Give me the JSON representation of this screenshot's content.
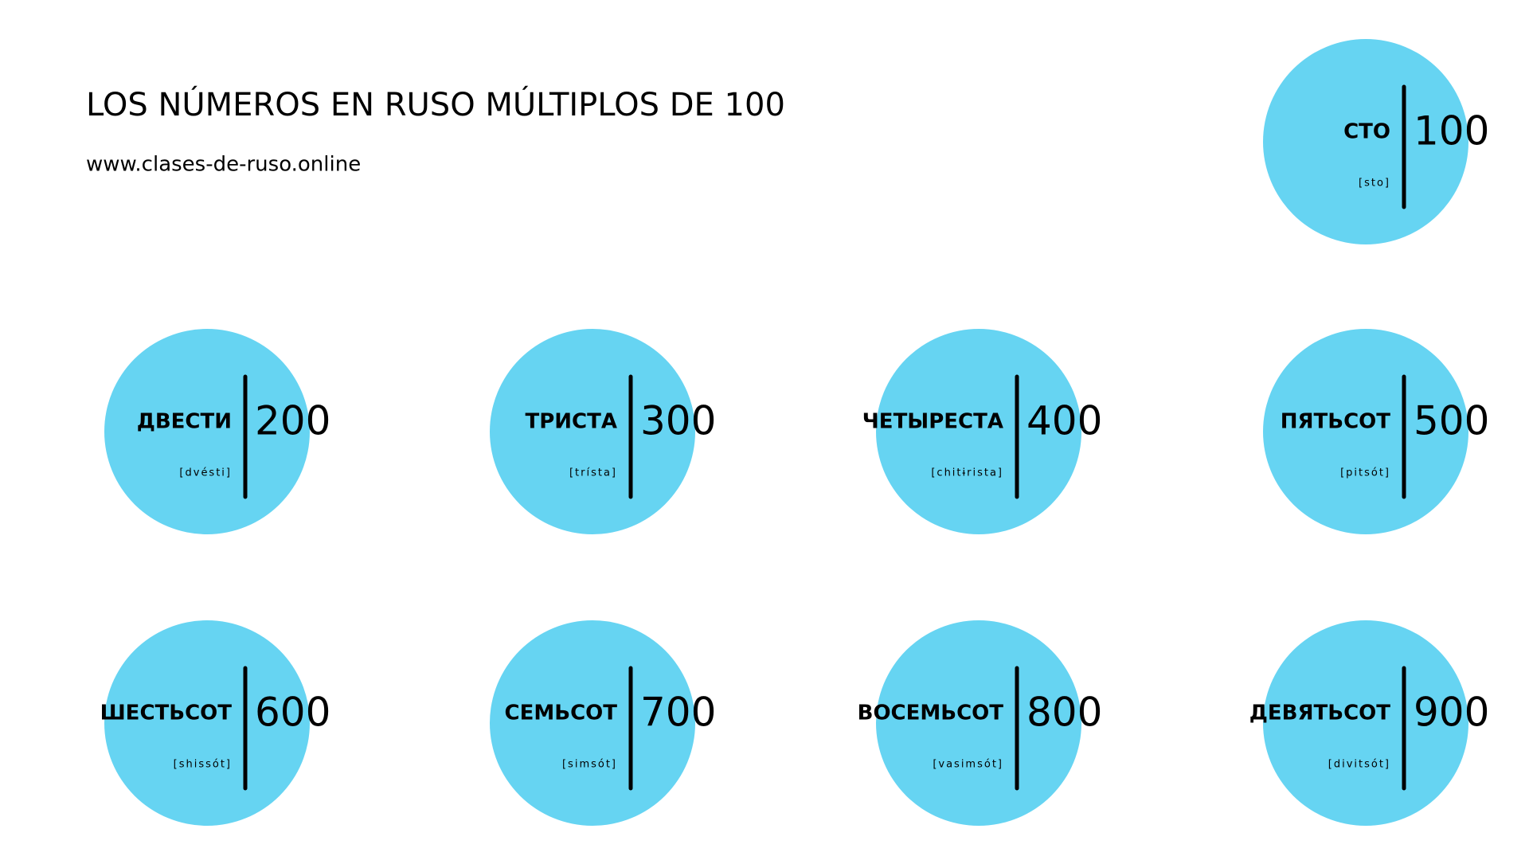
{
  "header": {
    "title": "LOS NÚMEROS EN RUSO MÚLTIPLOS DE 100",
    "subtitle": "www.clases-de-ruso.online"
  },
  "numbers": [
    {
      "word": "СТО",
      "pronunciation": "[sto]",
      "number": "100"
    },
    {
      "word": "ДВЕСТИ",
      "pronunciation": "[dvésti]",
      "number": "200"
    },
    {
      "word": "ТРИСТА",
      "pronunciation": "[trísta]",
      "number": "300"
    },
    {
      "word": "ЧЕТЫРЕСТА",
      "pronunciation": "[chitɨrista]",
      "number": "400"
    },
    {
      "word": "ПЯТЬСОТ",
      "pronunciation": "[pitsót]",
      "number": "500"
    },
    {
      "word": "ШЕСТЬСОТ",
      "pronunciation": "[shissót]",
      "number": "600"
    },
    {
      "word": "СЕМЬСОТ",
      "pronunciation": "[simsót]",
      "number": "700"
    },
    {
      "word": "ВОСЕМЬСОТ",
      "pronunciation": "[vasimsót]",
      "number": "800"
    },
    {
      "word": "ДЕВЯТЬСОТ",
      "pronunciation": "[divitsót]",
      "number": "900"
    }
  ]
}
